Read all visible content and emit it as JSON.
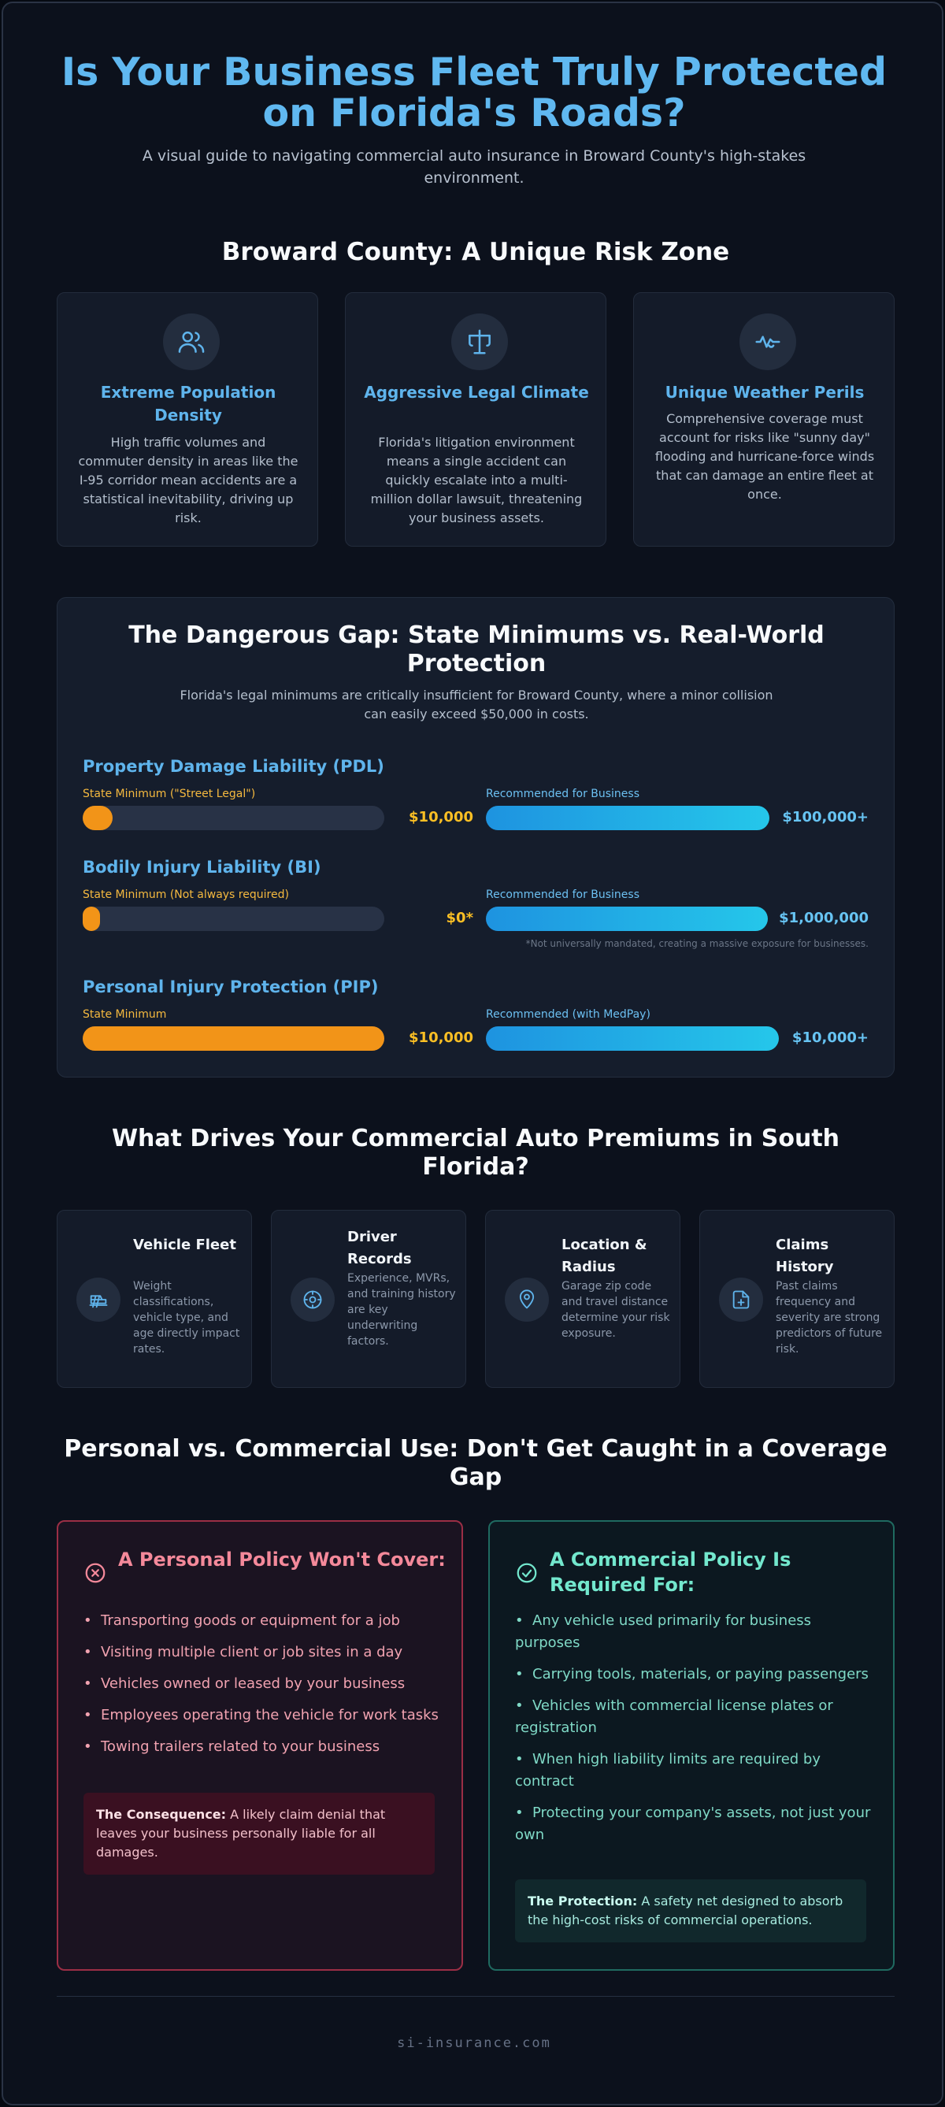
{
  "header": {
    "title": "Is Your Business Fleet Truly Protected on Florida's Roads?",
    "subtitle": "A visual guide to navigating commercial auto insurance in Broward County's high-stakes environment."
  },
  "risk_zone": {
    "heading": "Broward County: A Unique Risk Zone",
    "cards": [
      {
        "icon": "users-icon",
        "title": "Extreme Population Density",
        "text": "High traffic volumes and commuter density in areas like the I-95 corridor mean accidents are a statistical inevitability, driving up risk."
      },
      {
        "icon": "gavel-icon",
        "title": "Aggressive Legal Climate",
        "text": "Florida's litigation environment means a single accident can quickly escalate into a multi-million dollar lawsuit, threatening your business assets."
      },
      {
        "icon": "weather-icon",
        "title": "Unique Weather Perils",
        "text": "Comprehensive coverage must account for risks like \"sunny day\" flooding and hurricane-force winds that can damage an entire fleet at once."
      }
    ]
  },
  "gap": {
    "heading": "The Dangerous Gap: State Minimums vs. Real-World Protection",
    "subtitle": "Florida's legal minimums are critically insufficient for Broward County, where a minor collision can easily exceed $50,000 in costs.",
    "coverages": [
      {
        "name": "Property Damage Liability (PDL)",
        "min_label": "State Minimum (\"Street Legal\")",
        "min_value": "$10,000",
        "min_fill": 0.1,
        "rec_label": "Recommended for Business",
        "rec_value": "$100,000+",
        "rec_fill": 1.0
      },
      {
        "name": "Bodily Injury Liability (BI)",
        "min_label": "State Minimum (Not always required)",
        "min_value": "$0*",
        "min_fill": 0.05,
        "rec_label": "Recommended for Business",
        "rec_value": "$1,000,000",
        "rec_fill": 1.0
      },
      {
        "name": "Personal Injury Protection (PIP)",
        "min_label": "State Minimum",
        "min_value": "$10,000",
        "min_fill": 1.0,
        "rec_label": "Recommended (with MedPay)",
        "rec_value": "$10,000+",
        "rec_fill": 1.0
      }
    ],
    "note": "*Not universally mandated, creating a massive exposure for businesses."
  },
  "drivers": {
    "heading": "What Drives Your Commercial Auto Premiums in South Florida?",
    "items": [
      {
        "icon": "truck-icon",
        "title": "Vehicle Fleet",
        "text": "Weight classifications, vehicle type, and age directly impact rates."
      },
      {
        "icon": "steering-wheel-icon",
        "title": "Driver Records",
        "text": "Experience, MVRs, and training history are key underwriting factors."
      },
      {
        "icon": "map-pin-icon",
        "title": "Location & Radius",
        "text": "Garage zip code and travel distance determine your risk exposure."
      },
      {
        "icon": "file-plus-icon",
        "title": "Claims History",
        "text": "Past claims frequency and severity are strong predictors of future risk."
      }
    ]
  },
  "comparison": {
    "heading": "Personal vs. Commercial Use: Don't Get Caught in a Coverage Gap",
    "personal": {
      "title": "A Personal Policy Won't Cover:",
      "items": [
        "Transporting goods or equipment for a job",
        "Visiting multiple client or job sites in a day",
        "Vehicles owned or leased by your business",
        "Employees operating the vehicle for work tasks",
        "Towing trailers related to your business"
      ],
      "callout_label": "The Consequence:",
      "callout_text": " A likely claim denial that leaves your business personally liable for all damages."
    },
    "commercial": {
      "title": "A Commercial Policy Is Required For:",
      "items": [
        "Any vehicle used primarily for business purposes",
        "Carrying tools, materials, or paying passengers",
        "Vehicles with commercial license plates or registration",
        "When high liability limits are required by contract",
        "Protecting your company's assets, not just your own"
      ],
      "callout_label": "The Protection:",
      "callout_text": " A safety net designed to absorb the high-cost risks of commercial operations."
    }
  },
  "footer": {
    "text": "si-insurance.com"
  },
  "colors": {
    "title": "#60b8f0",
    "accent": "#5fb4ec",
    "minimum": "#f29418",
    "recommended": "#25c7ea",
    "danger": "#f4899a",
    "safe": "#73e7cd"
  }
}
